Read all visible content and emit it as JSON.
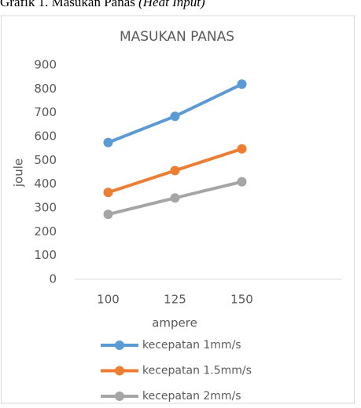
{
  "chart_data": {
    "type": "line",
    "caption": "Grafik 1. Masukan Panas",
    "caption_note": "(Heat Input)",
    "title": "MASUKAN PANAS",
    "x_label": "ampere",
    "y_label": "joule",
    "categories": [
      "100",
      "125",
      "150",
      null
    ],
    "series": [
      {
        "name": "kecepatan 1mm/s",
        "color": "#5b9bd5",
        "values": [
          575,
          685,
          820,
          null
        ]
      },
      {
        "name": "kecepatan 1.5mm/s",
        "color": "#ed7d31",
        "values": [
          365,
          457,
          548,
          null
        ]
      },
      {
        "name": "kecepatan 2mm/s",
        "color": "#a5a5a5",
        "values": [
          273,
          342,
          410,
          null
        ]
      }
    ],
    "ylim": [
      0,
      900
    ],
    "yticks": [
      0,
      100,
      200,
      300,
      400,
      500,
      600,
      700,
      800,
      900
    ],
    "grid": false,
    "legend": "bottom"
  }
}
